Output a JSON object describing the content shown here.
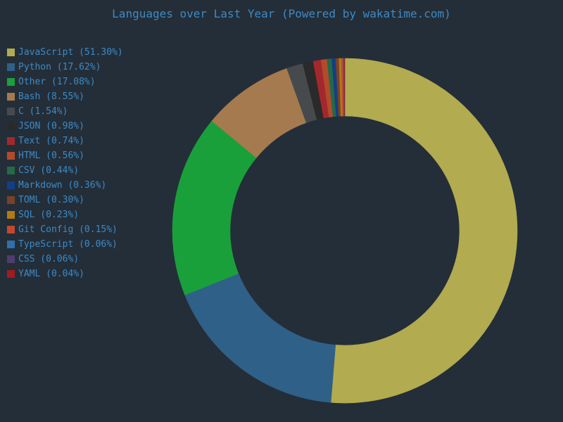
{
  "chart_data": {
    "type": "pie",
    "title": "Languages over Last Year (Powered by wakatime.com)",
    "legend_position": "top-left",
    "slices": [
      {
        "name": "JavaScript",
        "value": 51.3,
        "label": "JavaScript (51.30%)",
        "color": "#b2ab50"
      },
      {
        "name": "Python",
        "value": 17.62,
        "label": "Python (17.62%)",
        "color": "#2f6088"
      },
      {
        "name": "Other",
        "value": 17.08,
        "label": "Other (17.08%)",
        "color": "#1aa03b"
      },
      {
        "name": "Bash",
        "value": 8.55,
        "label": "Bash (8.55%)",
        "color": "#a67a4f"
      },
      {
        "name": "C",
        "value": 1.54,
        "label": "C (1.54%)",
        "color": "#474a4d"
      },
      {
        "name": "JSON",
        "value": 0.98,
        "label": "JSON (0.98%)",
        "color": "#2a2a2a"
      },
      {
        "name": "Text",
        "value": 0.74,
        "label": "Text (0.74%)",
        "color": "#a3282d"
      },
      {
        "name": "HTML",
        "value": 0.56,
        "label": "HTML (0.56%)",
        "color": "#b24b2c"
      },
      {
        "name": "CSV",
        "value": 0.44,
        "label": "CSV (0.44%)",
        "color": "#246a46"
      },
      {
        "name": "Markdown",
        "value": 0.36,
        "label": "Markdown (0.36%)",
        "color": "#123f85"
      },
      {
        "name": "TOML",
        "value": 0.3,
        "label": "TOML (0.30%)",
        "color": "#7a4129"
      },
      {
        "name": "SQL",
        "value": 0.23,
        "label": "SQL (0.23%)",
        "color": "#b27a12"
      },
      {
        "name": "Git Config",
        "value": 0.15,
        "label": "Git Config (0.15%)",
        "color": "#c2482f"
      },
      {
        "name": "TypeScript",
        "value": 0.06,
        "label": "TypeScript (0.06%)",
        "color": "#2f6fb0"
      },
      {
        "name": "CSS",
        "value": 0.06,
        "label": "CSS (0.06%)",
        "color": "#4f3d6e"
      },
      {
        "name": "YAML",
        "value": 0.04,
        "label": "YAML (0.04%)",
        "color": "#a11b1f"
      }
    ]
  }
}
